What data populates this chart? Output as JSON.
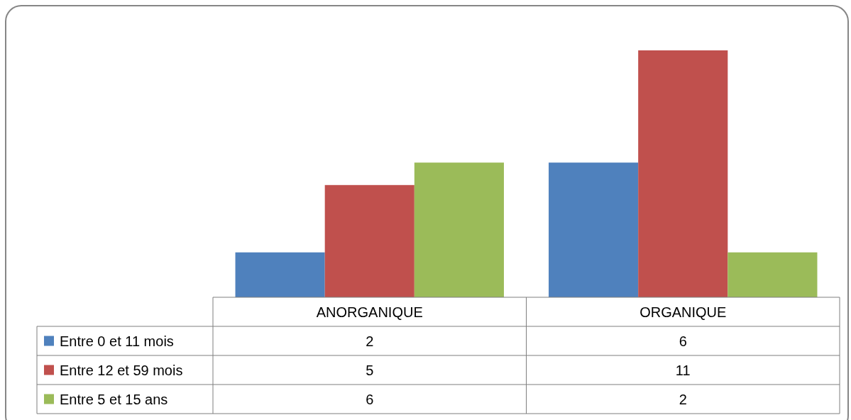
{
  "chart_data": {
    "type": "bar",
    "categories": [
      "ANORGANIQUE",
      "ORGANIQUE"
    ],
    "series": [
      {
        "name": "Entre 0 et 11 mois",
        "color": "#4f81bd",
        "values": [
          2,
          6
        ]
      },
      {
        "name": "Entre 12 et 59 mois",
        "color": "#c0504d",
        "values": [
          5,
          11
        ]
      },
      {
        "name": "Entre 5 et 15 ans",
        "color": "#9bbb59",
        "values": [
          6,
          2
        ]
      }
    ],
    "data_labels": true,
    "legend": "bottom left"
  }
}
